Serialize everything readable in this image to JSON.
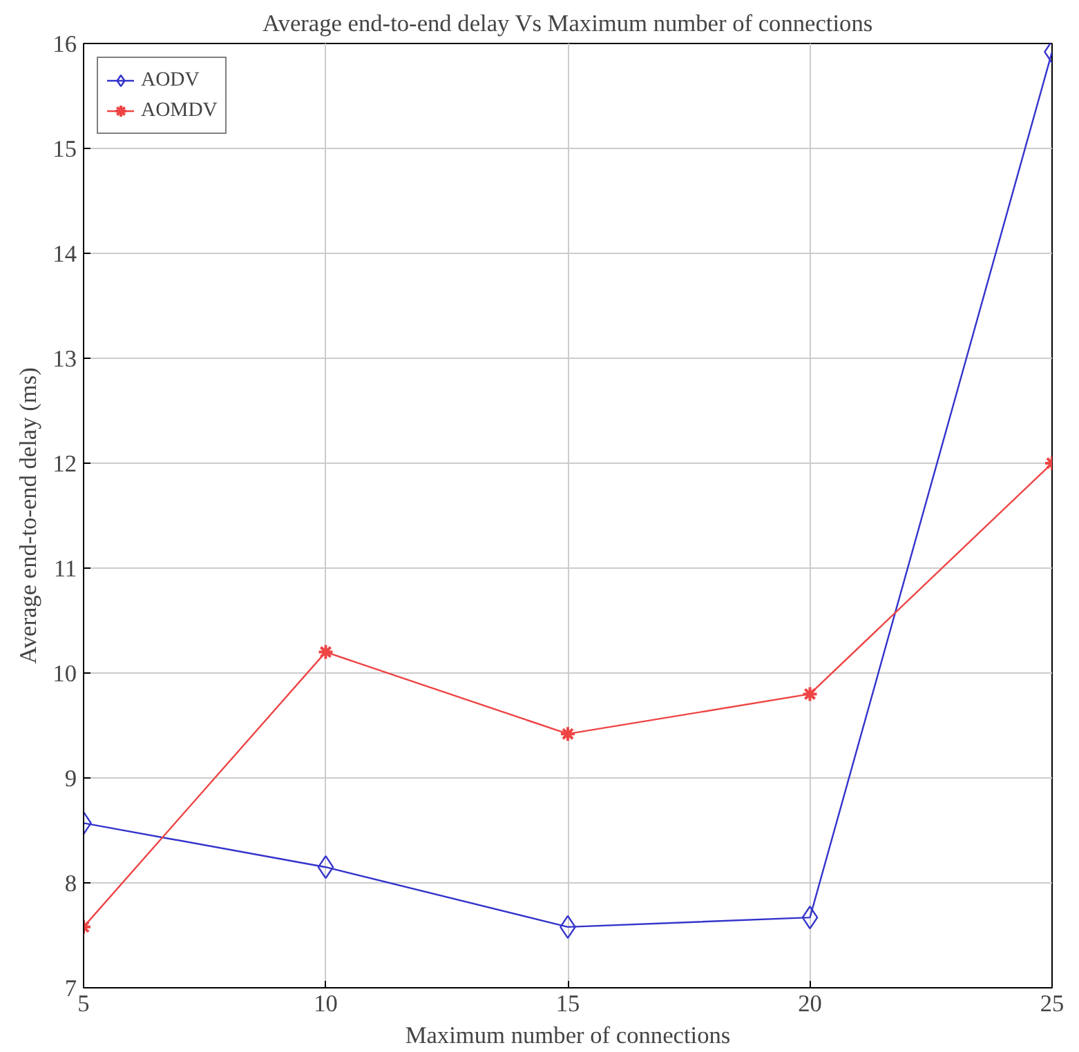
{
  "chart_data": {
    "type": "line",
    "title": "Average end-to-end delay Vs Maximum number of connections",
    "xlabel": "Maximum number of connections",
    "ylabel": "Average end-to-end delay (ms)",
    "x": [
      5,
      10,
      15,
      20,
      25
    ],
    "xlim": [
      5,
      25
    ],
    "xticks": [
      5,
      10,
      15,
      20,
      25
    ],
    "ylim": [
      7,
      16
    ],
    "yticks": [
      7,
      8,
      9,
      10,
      11,
      12,
      13,
      14,
      15,
      16
    ],
    "grid": true,
    "legend": "top left",
    "line_style": "solid",
    "series": [
      {
        "name": "AODV",
        "color": "#3333cc",
        "marker": "diamond",
        "values": [
          8.57,
          8.15,
          7.58,
          7.67,
          15.92
        ]
      },
      {
        "name": "AOMDV",
        "color": "#ee4444",
        "marker": "cross",
        "values": [
          7.58,
          10.2,
          9.42,
          9.8,
          12.0
        ]
      }
    ]
  }
}
